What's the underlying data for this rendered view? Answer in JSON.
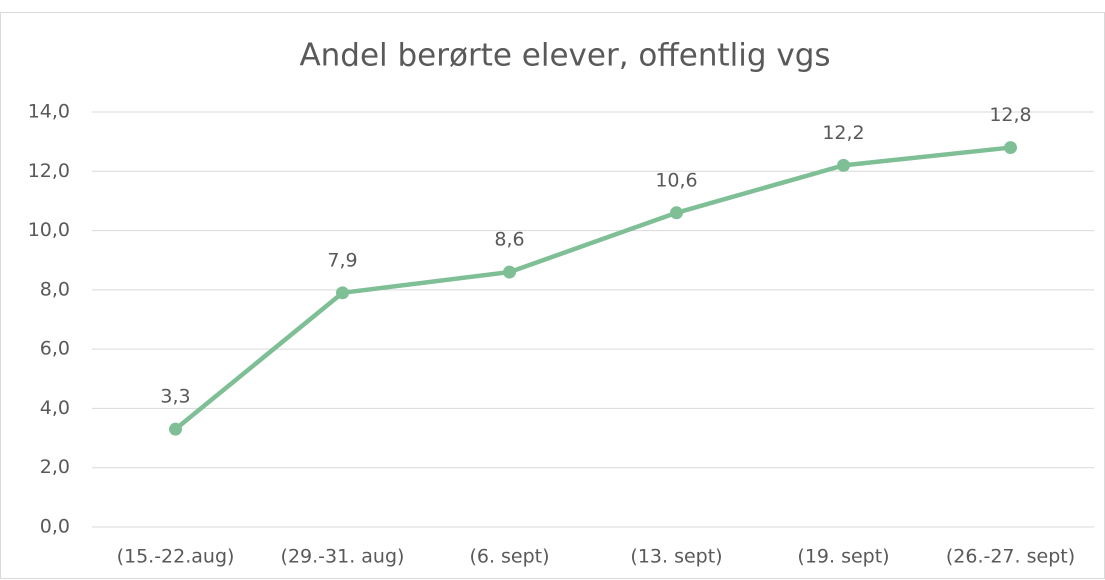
{
  "chart_data": {
    "type": "line",
    "title": "Andel berørte elever, offentlig vgs",
    "categories": [
      "(15.-22.aug)",
      "(29.-31. aug)",
      "(6. sept)",
      "(13. sept)",
      "(19. sept)",
      "(26.-27. sept)"
    ],
    "series": [
      {
        "name": "Andel berørte elever, offentlig vgs",
        "color": "#7fbf96",
        "values": [
          3.3,
          7.9,
          8.6,
          10.6,
          12.2,
          12.8
        ],
        "value_labels": [
          "3,3",
          "7,9",
          "8,6",
          "10,6",
          "12,2",
          "12,8"
        ]
      }
    ],
    "ylim": [
      0,
      14
    ],
    "yticks": [
      {
        "value": 0,
        "label": "0,0"
      },
      {
        "value": 2,
        "label": "2,0"
      },
      {
        "value": 4,
        "label": "4,0"
      },
      {
        "value": 6,
        "label": "6,0"
      },
      {
        "value": 8,
        "label": "8,0"
      },
      {
        "value": 10,
        "label": "10,0"
      },
      {
        "value": 12,
        "label": "12,0"
      },
      {
        "value": 14,
        "label": "14,0"
      }
    ],
    "grid": true
  }
}
